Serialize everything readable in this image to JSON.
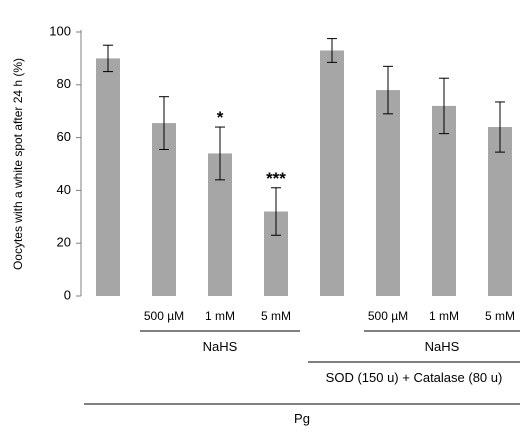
{
  "chart_data": {
    "type": "bar",
    "ylabel": "Oocytes with a white spot after 24 h (%)",
    "xlabel": "",
    "title": "",
    "ylim": [
      0,
      100
    ],
    "yticks": [
      0,
      20,
      40,
      60,
      80,
      100
    ],
    "grid": false,
    "categories": [
      "",
      "500 µM",
      "1 mM",
      "5 mM",
      "",
      "500 µM",
      "1 mM",
      "5 mM"
    ],
    "values": [
      90,
      65.5,
      54,
      32,
      93,
      78,
      72,
      64
    ],
    "errors": [
      5,
      10,
      10,
      9,
      4.5,
      9,
      10.5,
      9.5
    ],
    "significance": [
      "",
      "",
      "*",
      "***",
      "",
      "",
      "",
      ""
    ],
    "bar_color": "#a6a6a6",
    "error_color": "#000000",
    "groups": [
      {
        "label": "NaHS",
        "from": 1,
        "to": 3
      },
      {
        "label": "NaHS",
        "from": 5,
        "to": 7
      },
      {
        "label": "SOD (150 u) + Catalase (80 u)",
        "from": 4,
        "to": 7
      },
      {
        "label": "Pg",
        "from": 0,
        "to": 7
      }
    ]
  }
}
